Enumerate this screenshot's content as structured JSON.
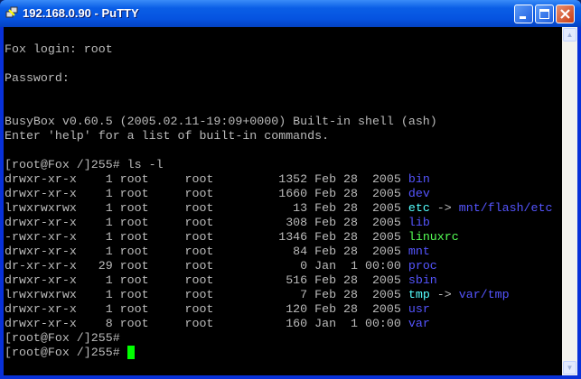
{
  "window": {
    "title": "192.168.0.90 - PuTTY"
  },
  "colors": {
    "text": "#bbbbbb",
    "directory": "#5555ff",
    "symlink": "#55ffff",
    "executable": "#55ff55",
    "cursor": "#00ff00"
  },
  "terminal": {
    "login": "Fox login: root",
    "password": "Password:",
    "banner1": "BusyBox v0.60.5 (2005.02.11-19:09+0000) Built-in shell (ash)",
    "banner2": "Enter 'help' for a list of built-in commands.",
    "prompt_cmd": "[root@Fox /]255# ls -l",
    "listing": [
      {
        "meta": "drwxr-xr-x    1 root     root         1352 Feb 28  2005 ",
        "name": "bin",
        "type": "dir",
        "target": ""
      },
      {
        "meta": "drwxr-xr-x    1 root     root         1660 Feb 28  2005 ",
        "name": "dev",
        "type": "dir",
        "target": ""
      },
      {
        "meta": "lrwxrwxrwx    1 root     root           13 Feb 28  2005 ",
        "name": "etc",
        "type": "lnk",
        "target": "mnt/flash/etc"
      },
      {
        "meta": "drwxr-xr-x    1 root     root          308 Feb 28  2005 ",
        "name": "lib",
        "type": "dir",
        "target": ""
      },
      {
        "meta": "-rwxr-xr-x    1 root     root         1346 Feb 28  2005 ",
        "name": "linuxrc",
        "type": "exe",
        "target": ""
      },
      {
        "meta": "drwxr-xr-x    1 root     root           84 Feb 28  2005 ",
        "name": "mnt",
        "type": "dir",
        "target": ""
      },
      {
        "meta": "dr-xr-xr-x   29 root     root            0 Jan  1 00:00 ",
        "name": "proc",
        "type": "dir",
        "target": ""
      },
      {
        "meta": "drwxr-xr-x    1 root     root          516 Feb 28  2005 ",
        "name": "sbin",
        "type": "dir",
        "target": ""
      },
      {
        "meta": "lrwxrwxrwx    1 root     root            7 Feb 28  2005 ",
        "name": "tmp",
        "type": "lnk",
        "target": "var/tmp"
      },
      {
        "meta": "drwxr-xr-x    1 root     root          120 Feb 28  2005 ",
        "name": "usr",
        "type": "dir",
        "target": ""
      },
      {
        "meta": "drwxr-xr-x    8 root     root          160 Jan  1 00:00 ",
        "name": "var",
        "type": "dir",
        "target": ""
      }
    ],
    "prompt1": "[root@Fox /]255# ",
    "prompt2": "[root@Fox /]255# ",
    "arrow": " -> "
  }
}
